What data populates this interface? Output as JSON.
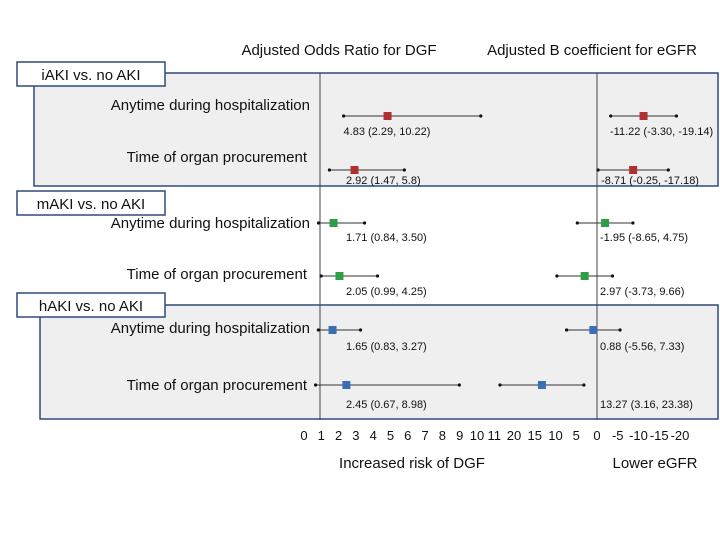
{
  "chart_data": {
    "type": "forest",
    "left_panel_title": "Adjusted Odds Ratio for DGF",
    "right_panel_title": "Adjusted B coefficient for eGFR",
    "left_axis_label": "Increased risk of DGF",
    "right_axis_label": "Lower eGFR",
    "left_ticks": [
      "0",
      "1",
      "2",
      "3",
      "4",
      "5",
      "6",
      "7",
      "8",
      "9",
      "10",
      "11"
    ],
    "right_ticks": [
      "20",
      "15",
      "10",
      "5",
      "0",
      "-5",
      "-10",
      "-15",
      "-20"
    ],
    "left_xlim": [
      0,
      11
    ],
    "left_reference": 1,
    "right_reference": 0,
    "groups": [
      {
        "name": "iAKI vs. no AKI",
        "color": "#b03030",
        "shaded": true,
        "rows": [
          {
            "label": "Anytime during hospitalization",
            "or": 4.83,
            "or_lo": 2.29,
            "or_hi": 10.22,
            "or_text": "4.83 (2.29, 10.22)",
            "b": -11.22,
            "b_lo": -3.3,
            "b_hi": -19.14,
            "b_text": "-11.22 (-3.30, -19.14)"
          },
          {
            "label": "Time of organ procurement",
            "or": 2.92,
            "or_lo": 1.47,
            "or_hi": 5.8,
            "or_text": "2.92 (1.47, 5.8)",
            "b": -8.71,
            "b_lo": -0.25,
            "b_hi": -17.18,
            "b_text": "-8.71 (-0.25, -17.18)"
          }
        ]
      },
      {
        "name": "mAKI vs. no AKI",
        "color": "#2e9e44",
        "shaded": false,
        "rows": [
          {
            "label": "Anytime during hospitalization",
            "or": 1.71,
            "or_lo": 0.84,
            "or_hi": 3.5,
            "or_text": "1.71 (0.84, 3.50)",
            "b": -1.95,
            "b_lo": -8.65,
            "b_hi": 4.75,
            "b_text": "-1.95 (-8.65, 4.75)"
          },
          {
            "label": "Time of organ procurement",
            "or": 2.05,
            "or_lo": 0.99,
            "or_hi": 4.25,
            "or_text": "2.05 (0.99, 4.25)",
            "b": 2.97,
            "b_lo": -3.73,
            "b_hi": 9.66,
            "b_text": "2.97 (-3.73, 9.66)"
          }
        ]
      },
      {
        "name": "hAKI vs. no AKI",
        "color": "#3a6fb5",
        "shaded": true,
        "rows": [
          {
            "label": "Anytime during hospitalization",
            "or": 1.65,
            "or_lo": 0.83,
            "or_hi": 3.27,
            "or_text": "1.65 (0.83, 3.27)",
            "b": 0.88,
            "b_lo": -5.56,
            "b_hi": 7.33,
            "b_text": "0.88 (-5.56, 7.33)"
          },
          {
            "label": "Time of organ procurement",
            "or": 2.45,
            "or_lo": 0.67,
            "or_hi": 8.98,
            "or_text": "2.45 (0.67, 8.98)",
            "b": 13.27,
            "b_lo": 3.16,
            "b_hi": 23.38,
            "b_text": "13.27 (3.16, 23.38)"
          }
        ]
      }
    ]
  }
}
